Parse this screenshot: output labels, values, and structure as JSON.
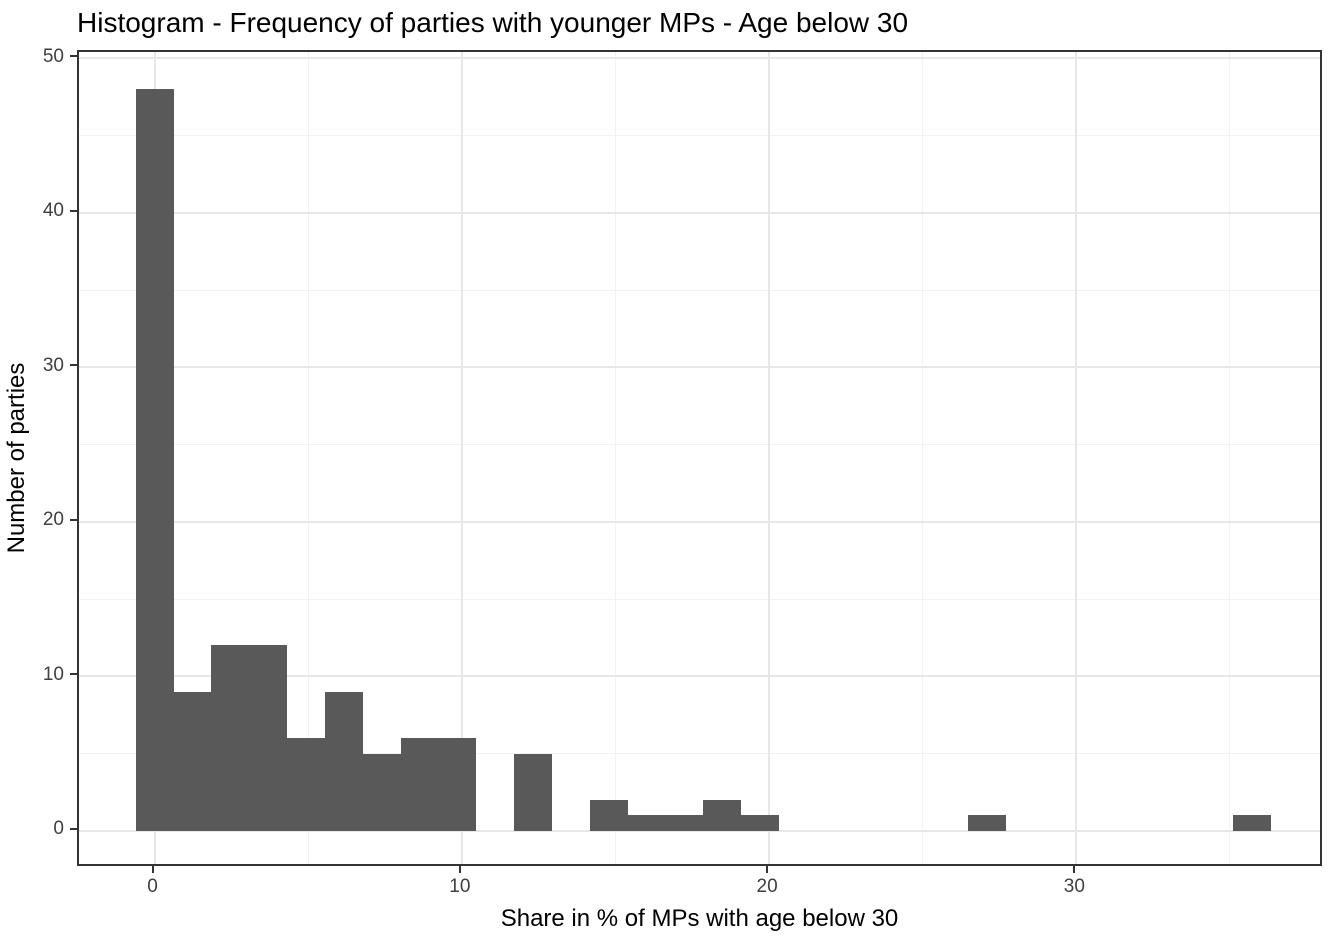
{
  "chart_data": {
    "type": "bar",
    "subtype": "histogram",
    "title": "Histogram - Frequency of parties with younger MPs - Age below 30",
    "xlabel": "Share in % of MPs with age below 30",
    "ylabel": "Number of parties",
    "bin_width": 1.232,
    "bin_centers": [
      0,
      1.23,
      2.46,
      3.69,
      4.93,
      6.16,
      7.39,
      8.62,
      9.85,
      11.08,
      12.32,
      13.55,
      14.78,
      16.01,
      17.24,
      18.47,
      19.71,
      20.94,
      22.17,
      23.4,
      24.63,
      25.86,
      27.1,
      28.33,
      29.56,
      30.79,
      32.02,
      33.25,
      34.49,
      35.72
    ],
    "counts": [
      48,
      9,
      12,
      12,
      6,
      9,
      5,
      6,
      6,
      0,
      5,
      0,
      2,
      1,
      1,
      2,
      1,
      0,
      0,
      0,
      0,
      0,
      1,
      0,
      0,
      0,
      0,
      0,
      0,
      1
    ],
    "x_ticks": [
      0,
      10,
      20,
      30
    ],
    "x_minor_ticks": [
      5,
      15,
      25,
      35
    ],
    "y_ticks": [
      0,
      10,
      20,
      30,
      40,
      50
    ],
    "y_minor_ticks": [
      5,
      15,
      25,
      35,
      45
    ],
    "xlim": [
      -2.46,
      38.06
    ],
    "ylim": [
      -2.4,
      50.4
    ],
    "grid": "on",
    "legend": "none",
    "colors": {
      "bar_fill": "#595959",
      "panel_border": "#333333",
      "grid_major": "#e7e7e7",
      "grid_minor": "#f2f2f2",
      "tick_label": "#404040",
      "title_text": "#000000",
      "background": "#ffffff"
    }
  }
}
